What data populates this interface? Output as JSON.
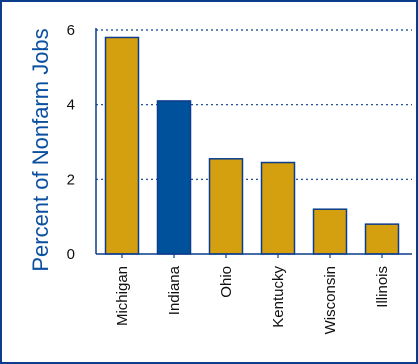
{
  "chart_data": {
    "type": "bar",
    "title": "",
    "xlabel": "",
    "ylabel": "Percent of Nonfarm Jobs",
    "ylim": [
      0,
      6
    ],
    "yticks": [
      0,
      2,
      4,
      6
    ],
    "grid": true,
    "categories": [
      "Michigan",
      "Indiana",
      "Ohio",
      "Kentucky",
      "Wisconsin",
      "Illinois"
    ],
    "values": [
      5.8,
      4.1,
      2.55,
      2.45,
      1.2,
      0.8
    ],
    "bar_colors": [
      "#d4a00f",
      "#00519b",
      "#d4a00f",
      "#d4a00f",
      "#d4a00f",
      "#d4a00f"
    ]
  }
}
